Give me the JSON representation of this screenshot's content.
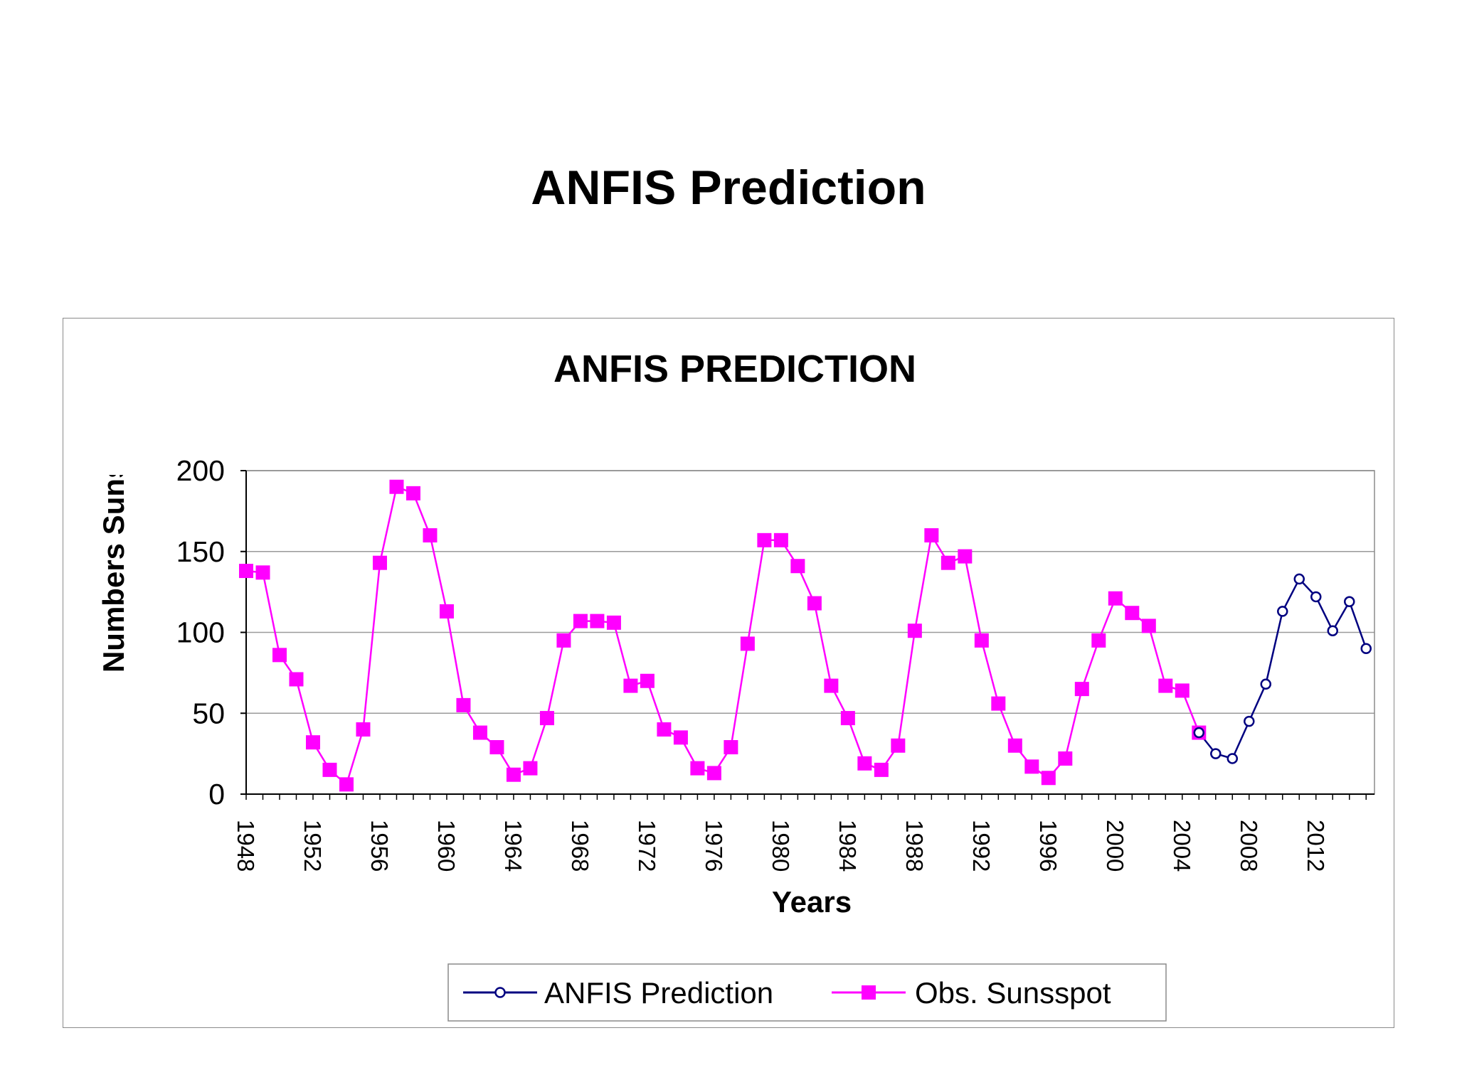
{
  "slide": {
    "title": "ANFIS Prediction"
  },
  "chart_data": {
    "type": "line",
    "title": "ANFIS PREDICTION",
    "xlabel": "Years",
    "ylabel": "Numbers Sunsp",
    "ylim": [
      0,
      200
    ],
    "yticks": [
      0,
      50,
      100,
      150,
      200
    ],
    "xlim": [
      1948,
      2015.5
    ],
    "xticks": [
      1948,
      1952,
      1956,
      1960,
      1964,
      1968,
      1972,
      1976,
      1980,
      1984,
      1988,
      1992,
      1996,
      2000,
      2004,
      2008,
      2012
    ],
    "grid": "horizontal",
    "legend": "bottom",
    "colors": {
      "prediction": "#000080",
      "observed": "#ff00ff",
      "plot_bg": "#ffffff",
      "grid": "#9a9a9a"
    },
    "series": [
      {
        "name": "ANFIS Prediction",
        "marker": "open-circle",
        "color": "#000080",
        "x": [
          2005,
          2006,
          2007,
          2008,
          2009,
          2010,
          2011,
          2012,
          2013,
          2014,
          2015
        ],
        "values": [
          38,
          25,
          22,
          45,
          68,
          113,
          133,
          122,
          101,
          119,
          90
        ]
      },
      {
        "name": "Obs. Sunsspot",
        "marker": "filled-square",
        "color": "#ff00ff",
        "x": [
          1948,
          1949,
          1950,
          1951,
          1952,
          1953,
          1954,
          1955,
          1956,
          1957,
          1958,
          1959,
          1960,
          1961,
          1962,
          1963,
          1964,
          1965,
          1966,
          1967,
          1968,
          1969,
          1970,
          1971,
          1972,
          1973,
          1974,
          1975,
          1976,
          1977,
          1978,
          1979,
          1980,
          1981,
          1982,
          1983,
          1984,
          1985,
          1986,
          1987,
          1988,
          1989,
          1990,
          1991,
          1992,
          1993,
          1994,
          1995,
          1996,
          1997,
          1998,
          1999,
          2000,
          2001,
          2002,
          2003,
          2004,
          2005
        ],
        "values": [
          138,
          137,
          86,
          71,
          32,
          15,
          6,
          40,
          143,
          190,
          186,
          160,
          113,
          55,
          38,
          29,
          12,
          16,
          47,
          95,
          107,
          107,
          106,
          67,
          70,
          40,
          35,
          16,
          13,
          29,
          93,
          157,
          157,
          141,
          118,
          67,
          47,
          19,
          15,
          30,
          101,
          160,
          143,
          147,
          95,
          56,
          30,
          17,
          10,
          22,
          65,
          95,
          121,
          112,
          104,
          67,
          64,
          38
        ]
      }
    ]
  }
}
